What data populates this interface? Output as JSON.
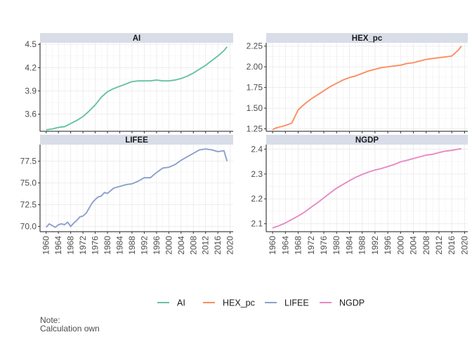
{
  "chart_data": {
    "type": "line",
    "layout": "facet_wrap 2x2, free y scales",
    "x_ticks": [
      1960,
      1964,
      1968,
      1972,
      1976,
      1980,
      1984,
      1988,
      1992,
      1996,
      2000,
      2004,
      2008,
      2012,
      2016,
      2020
    ],
    "xlim": [
      1958,
      2021
    ],
    "legend_position": "bottom",
    "panels": [
      {
        "title": "AI",
        "color": "#66C2A5",
        "ylim": [
          3.38,
          4.52
        ],
        "y_ticks": [
          3.6,
          3.9,
          4.2,
          4.5
        ],
        "y_tick_labels": [
          "3.6",
          "3.9",
          "4.2",
          "4.5"
        ],
        "x": [
          1960,
          1962,
          1964,
          1966,
          1968,
          1970,
          1972,
          1974,
          1976,
          1978,
          1980,
          1982,
          1984,
          1986,
          1988,
          1990,
          1992,
          1994,
          1996,
          1998,
          2000,
          2002,
          2004,
          2006,
          2008,
          2010,
          2012,
          2014,
          2016,
          2018,
          2019
        ],
        "y": [
          3.4,
          3.41,
          3.43,
          3.44,
          3.48,
          3.52,
          3.57,
          3.64,
          3.72,
          3.82,
          3.89,
          3.93,
          3.96,
          3.99,
          4.02,
          4.03,
          4.03,
          4.03,
          4.04,
          4.03,
          4.03,
          4.04,
          4.06,
          4.09,
          4.13,
          4.18,
          4.23,
          4.29,
          4.35,
          4.42,
          4.47
        ]
      },
      {
        "title": "HEX_pc",
        "color": "#FC8D62",
        "ylim": [
          1.22,
          2.29
        ],
        "y_ticks": [
          1.25,
          1.5,
          1.75,
          2.0,
          2.25
        ],
        "y_tick_labels": [
          "1.25",
          "1.50",
          "1.75",
          "2.00",
          "2.25"
        ],
        "x": [
          1960,
          1961,
          1962,
          1964,
          1966,
          1967,
          1968,
          1970,
          1972,
          1974,
          1976,
          1978,
          1980,
          1982,
          1984,
          1986,
          1988,
          1990,
          1992,
          1994,
          1996,
          1998,
          2000,
          2002,
          2004,
          2006,
          2008,
          2010,
          2012,
          2014,
          2016,
          2018,
          2019
        ],
        "y": [
          1.24,
          1.26,
          1.27,
          1.29,
          1.32,
          1.4,
          1.48,
          1.55,
          1.61,
          1.66,
          1.71,
          1.76,
          1.8,
          1.84,
          1.87,
          1.89,
          1.92,
          1.95,
          1.97,
          1.99,
          2.0,
          2.01,
          2.02,
          2.04,
          2.05,
          2.07,
          2.09,
          2.1,
          2.11,
          2.12,
          2.13,
          2.2,
          2.25
        ]
      },
      {
        "title": "LIFEE",
        "color": "#8DA0CB",
        "ylim": [
          69.4,
          79.4
        ],
        "y_ticks": [
          70.0,
          72.5,
          75.0,
          77.5
        ],
        "y_tick_labels": [
          "70.0",
          "72.5",
          "75.0",
          "77.5"
        ],
        "x": [
          1960,
          1961,
          1962,
          1963,
          1964,
          1965,
          1966,
          1967,
          1968,
          1969,
          1970,
          1971,
          1972,
          1973,
          1974,
          1975,
          1976,
          1977,
          1978,
          1979,
          1980,
          1981,
          1982,
          1983,
          1984,
          1986,
          1988,
          1990,
          1992,
          1994,
          1996,
          1998,
          2000,
          2002,
          2004,
          2006,
          2008,
          2010,
          2012,
          2014,
          2016,
          2018,
          2019
        ],
        "y": [
          69.9,
          70.3,
          70.1,
          69.9,
          70.2,
          70.3,
          70.2,
          70.5,
          70.0,
          70.4,
          70.7,
          71.1,
          71.2,
          71.5,
          72.1,
          72.7,
          73.1,
          73.4,
          73.5,
          73.9,
          73.8,
          74.1,
          74.4,
          74.5,
          74.6,
          74.8,
          74.9,
          75.2,
          75.6,
          75.6,
          76.2,
          76.7,
          76.8,
          77.1,
          77.6,
          78.0,
          78.4,
          78.8,
          78.9,
          78.8,
          78.6,
          78.7,
          77.5
        ]
      },
      {
        "title": "NGDP",
        "color": "#E78AC3",
        "ylim": [
          2.068,
          2.418
        ],
        "y_ticks": [
          2.1,
          2.2,
          2.3,
          2.4
        ],
        "y_tick_labels": [
          "2.1",
          "2.2",
          "2.3",
          "2.4"
        ],
        "x": [
          1960,
          1962,
          1964,
          1966,
          1968,
          1970,
          1972,
          1974,
          1976,
          1978,
          1980,
          1982,
          1984,
          1986,
          1988,
          1990,
          1992,
          1994,
          1996,
          1998,
          2000,
          2002,
          2004,
          2006,
          2008,
          2010,
          2012,
          2014,
          2016,
          2018,
          2019
        ],
        "y": [
          2.083,
          2.092,
          2.103,
          2.117,
          2.131,
          2.147,
          2.166,
          2.184,
          2.204,
          2.224,
          2.243,
          2.258,
          2.273,
          2.287,
          2.298,
          2.308,
          2.316,
          2.322,
          2.33,
          2.338,
          2.349,
          2.355,
          2.362,
          2.369,
          2.376,
          2.379,
          2.386,
          2.392,
          2.395,
          2.4,
          2.401
        ]
      }
    ],
    "legend": [
      "AI",
      "HEX_pc",
      "LIFEE",
      "NGDP"
    ]
  },
  "note": {
    "line1": "Note:",
    "line2": "Calculation own"
  }
}
